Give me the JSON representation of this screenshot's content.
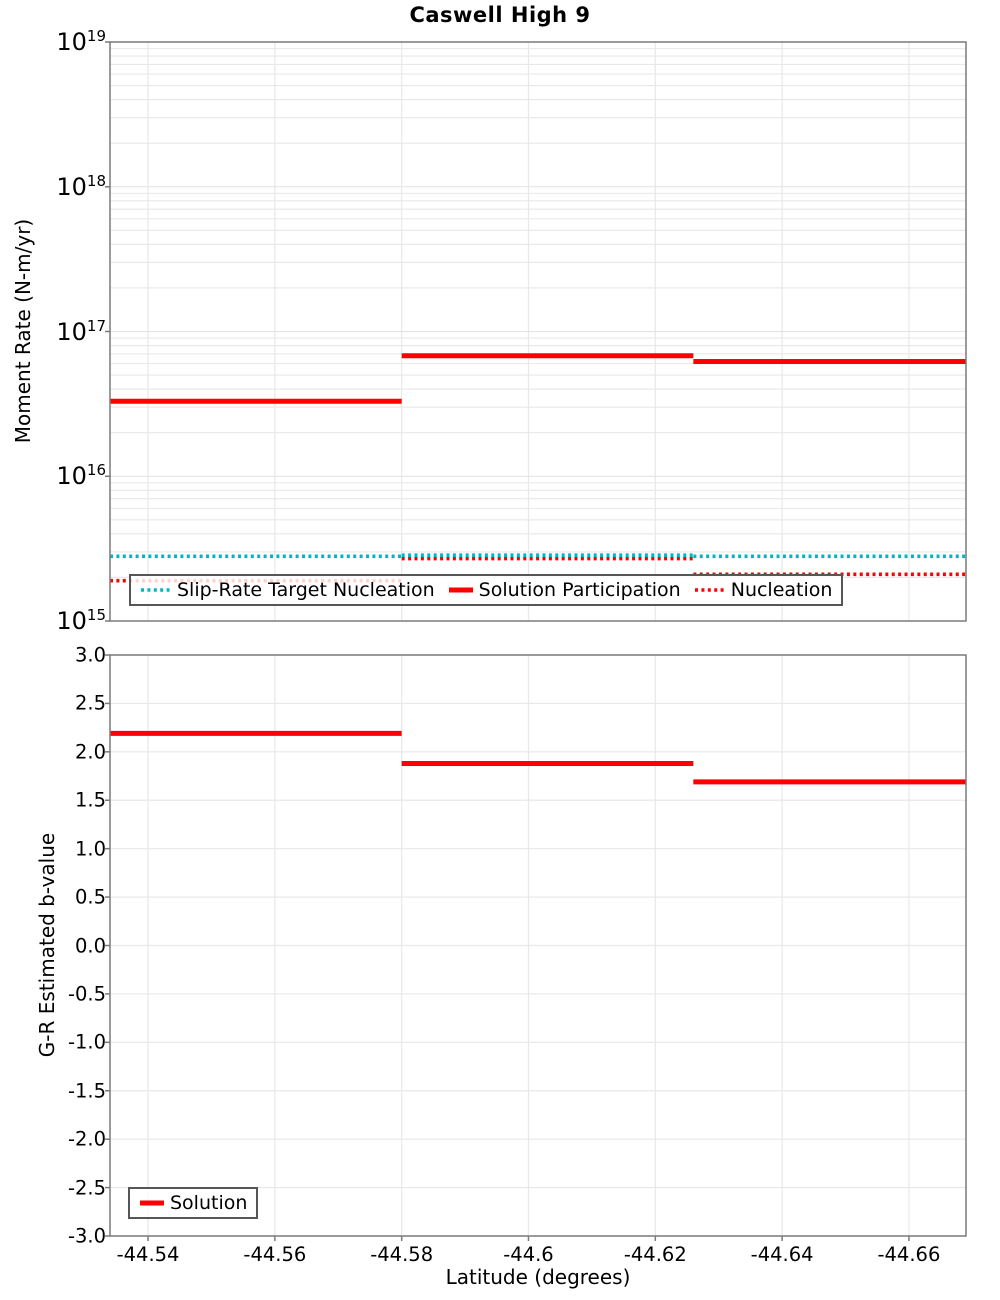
{
  "title": "Caswell High 9",
  "colors": {
    "solution_red": "#ff0000",
    "slip_rate_teal": "#00b8be",
    "grid": "#e8e8e8",
    "grid_major": "#e2e2e2",
    "panel_border": "#7a7a7a",
    "legend_border": "#565656"
  },
  "x_axis": {
    "label": "Latitude (degrees)",
    "tick_labels": [
      "-44.54",
      "-44.56",
      "-44.58",
      "-44.6",
      "-44.62",
      "-44.64",
      "-44.66"
    ],
    "tick_values": [
      -44.54,
      -44.56,
      -44.58,
      -44.6,
      -44.62,
      -44.64,
      -44.66
    ],
    "reversed": true,
    "xlim": [
      -44.534,
      -44.669
    ]
  },
  "chart_data": [
    {
      "type": "line",
      "subtype": "step-segments",
      "title": "Caswell High 9",
      "ylabel": "Moment Rate (N-m/yr)",
      "yscale": "log",
      "ylim": [
        1000000000000000.0,
        1e+19
      ],
      "y_tick_exponents": [
        19,
        18,
        17,
        16,
        15
      ],
      "grid": true,
      "x_edges": [
        -44.534,
        -44.58,
        -44.626,
        -44.669
      ],
      "series": [
        {
          "name": "Slip-Rate Target Nucleation",
          "style": "dotted",
          "color": "#00b8be",
          "values": [
            2800000000000000.0,
            2850000000000000.0,
            2800000000000000.0
          ]
        },
        {
          "name": "Solution Participation",
          "style": "solid",
          "color": "#ff0000",
          "values": [
            3.3e+16,
            6.8e+16,
            6.2e+16
          ]
        },
        {
          "name": "Nucleation",
          "style": "dotted",
          "color": "#ff0000",
          "values": [
            1900000000000000.0,
            2700000000000000.0,
            2100000000000000.0
          ]
        }
      ],
      "legend_position": "bottom-center"
    },
    {
      "type": "line",
      "subtype": "step-segments",
      "ylabel": "G-R Estimated b-value",
      "yscale": "linear",
      "ylim": [
        -3.0,
        3.0
      ],
      "y_tick_step": 0.5,
      "y_tick_labels": [
        "3.0",
        "2.5",
        "2.0",
        "1.5",
        "1.0",
        "0.5",
        "0.0",
        "-0.5",
        "-1.0",
        "-1.5",
        "-2.0",
        "-2.5",
        "-3.0"
      ],
      "grid": true,
      "x_edges": [
        -44.534,
        -44.58,
        -44.626,
        -44.669
      ],
      "series": [
        {
          "name": "Solution",
          "style": "solid",
          "color": "#ff0000",
          "values": [
            2.19,
            1.88,
            1.69
          ]
        }
      ],
      "legend_position": "bottom-left"
    }
  ]
}
